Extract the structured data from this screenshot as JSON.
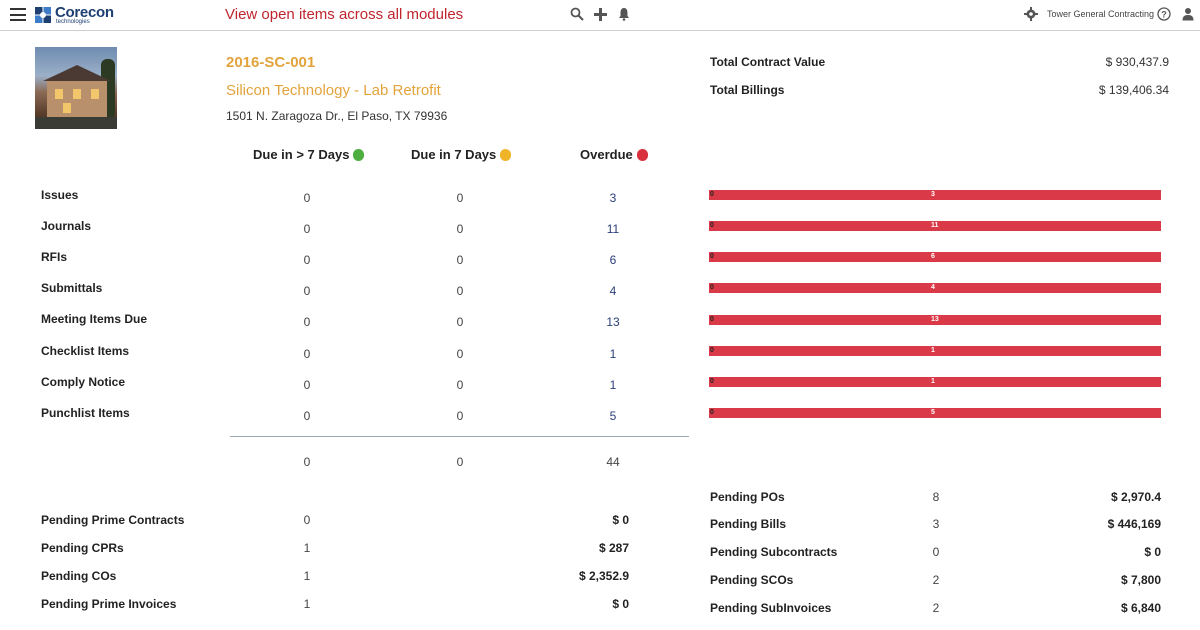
{
  "header": {
    "logo_name": "Corecon",
    "logo_sub": "technologies",
    "headline": "View open items across all modules",
    "company": "Tower General Contracting"
  },
  "project": {
    "code": "2016-SC-001",
    "name": "Silicon Technology - Lab Retrofit",
    "address": "1501 N. Zaragoza Dr., El Paso, TX 79936"
  },
  "summary": [
    {
      "label": "Total Contract Value",
      "value": "$ 930,437.9"
    },
    {
      "label": "Total Billings",
      "value": "$ 139,406.34"
    }
  ],
  "columns": [
    {
      "label": "Due in > 7 Days",
      "color": "#4caf3f"
    },
    {
      "label": "Due in 7 Days",
      "color": "#f0b429"
    },
    {
      "label": "Overdue",
      "color": "#d9323e"
    }
  ],
  "items": [
    {
      "label": "Issues",
      "gt7": "0",
      "in7": "0",
      "overdue": "3"
    },
    {
      "label": "Journals",
      "gt7": "0",
      "in7": "0",
      "overdue": "11"
    },
    {
      "label": "RFIs",
      "gt7": "0",
      "in7": "0",
      "overdue": "6"
    },
    {
      "label": "Submittals",
      "gt7": "0",
      "in7": "0",
      "overdue": "4"
    },
    {
      "label": "Meeting Items Due",
      "gt7": "0",
      "in7": "0",
      "overdue": "13"
    },
    {
      "label": "Checklist Items",
      "gt7": "0",
      "in7": "0",
      "overdue": "1"
    },
    {
      "label": "Comply Notice",
      "gt7": "0",
      "in7": "0",
      "overdue": "1"
    },
    {
      "label": "Punchlist Items",
      "gt7": "0",
      "in7": "0",
      "overdue": "5"
    }
  ],
  "totals": {
    "gt7": "0",
    "in7": "0",
    "overdue": "44"
  },
  "bars": [
    {
      "left": "0",
      "value": "3"
    },
    {
      "left": "0",
      "value": "11"
    },
    {
      "left": "0",
      "value": "6"
    },
    {
      "left": "0",
      "value": "4"
    },
    {
      "left": "0",
      "value": "13"
    },
    {
      "left": "0",
      "value": "1"
    },
    {
      "left": "0",
      "value": "1"
    },
    {
      "left": "0",
      "value": "5"
    }
  ],
  "pending_left": [
    {
      "label": "Pending Prime Contracts",
      "count": "0",
      "amount": "$ 0"
    },
    {
      "label": "Pending CPRs",
      "count": "1",
      "amount": "$ 287"
    },
    {
      "label": "Pending COs",
      "count": "1",
      "amount": "$ 2,352.9"
    },
    {
      "label": "Pending Prime Invoices",
      "count": "1",
      "amount": "$ 0"
    }
  ],
  "pending_right": [
    {
      "label": "Pending POs",
      "count": "8",
      "amount": "$ 2,970.4"
    },
    {
      "label": "Pending Bills",
      "count": "3",
      "amount": "$ 446,169"
    },
    {
      "label": "Pending Subcontracts",
      "count": "0",
      "amount": "$ 0"
    },
    {
      "label": "Pending SCOs",
      "count": "2",
      "amount": "$ 7,800"
    },
    {
      "label": "Pending SubInvoices",
      "count": "2",
      "amount": "$ 6,840"
    }
  ],
  "icons": {
    "menu": "hamburger-menu-icon",
    "search": "search-icon",
    "add": "plus-icon",
    "notify": "bell-icon",
    "settings": "gear-icon",
    "help": "help-icon",
    "user": "user-icon"
  }
}
